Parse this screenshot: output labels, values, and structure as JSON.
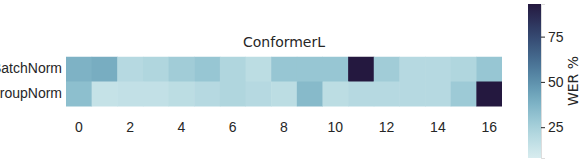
{
  "chart_data": {
    "type": "heatmap",
    "title": "ConformerL",
    "categories": [
      "0",
      null,
      "2",
      null,
      "4",
      null,
      "6",
      null,
      "8",
      null,
      "10",
      null,
      "12",
      null,
      "14",
      null,
      "16"
    ],
    "rows": [
      "BatchNorm",
      "GroupNorm"
    ],
    "cells": [
      [
        38,
        40,
        20,
        22,
        27,
        30,
        22,
        18,
        30,
        30,
        30,
        93,
        27,
        20,
        20,
        22,
        30
      ],
      [
        33,
        15,
        16,
        16,
        18,
        20,
        22,
        20,
        18,
        35,
        18,
        20,
        20,
        20,
        20,
        28,
        93
      ]
    ],
    "colorbar": {
      "label": "WER %",
      "range": [
        8,
        93
      ],
      "ticks": [
        25,
        50,
        75
      ]
    }
  }
}
